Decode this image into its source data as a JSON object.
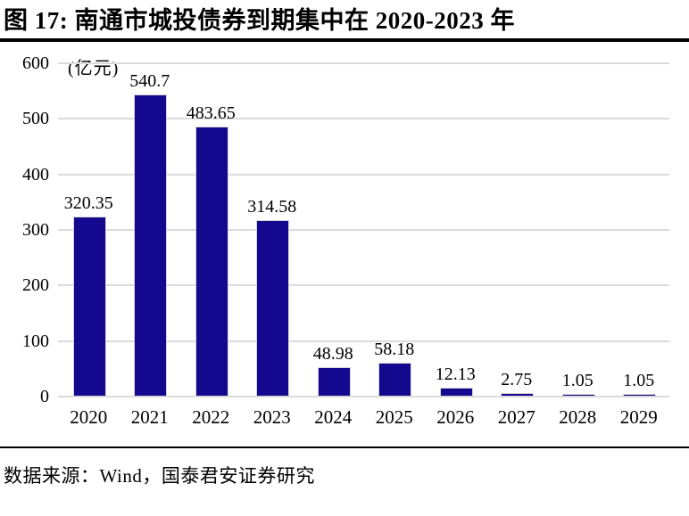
{
  "page": {
    "title": "图 17:  南通市城投债券到期集中在 2020-2023 年",
    "source_label": "数据来源：Wind，国泰君安证券研究"
  },
  "chart_data": {
    "type": "bar",
    "title": "南通市城投债券到期集中在 2020-2023 年",
    "unit_label": "(亿元)",
    "categories": [
      "2020",
      "2021",
      "2022",
      "2023",
      "2024",
      "2025",
      "2026",
      "2027",
      "2028",
      "2029"
    ],
    "values": [
      320.35,
      540.7,
      483.65,
      314.58,
      48.98,
      58.18,
      12.13,
      2.75,
      1.05,
      1.05
    ],
    "value_labels": [
      "320.35",
      "540.7",
      "483.65",
      "314.58",
      "48.98",
      "58.18",
      "12.13",
      "2.75",
      "1.05",
      "1.05"
    ],
    "xlabel": "",
    "ylabel": "",
    "ylim": [
      0,
      600
    ],
    "yticks": [
      0,
      100,
      200,
      300,
      400,
      500,
      600
    ],
    "grid": true,
    "legend_position": "none",
    "colors": {
      "bar_fill": "#14088F",
      "bar_border": "#D6D6D6",
      "gridline": "#DBDBDB",
      "text": "#000000",
      "rule": "#000000"
    }
  }
}
